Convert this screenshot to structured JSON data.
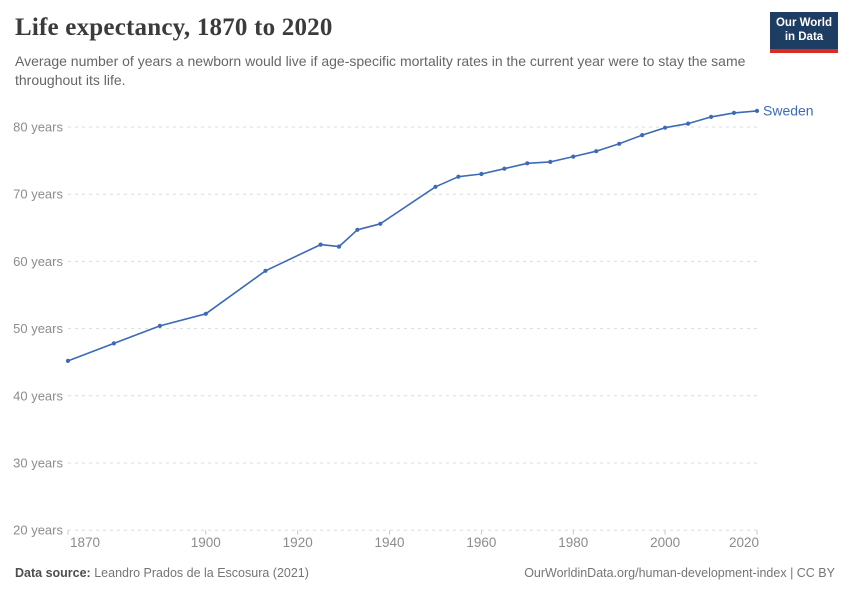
{
  "header": {
    "title": "Life expectancy, 1870 to 2020",
    "subtitle": "Average number of years a newborn would live if age-specific mortality rates in the current year were to stay the same throughout its life.",
    "logo": {
      "line1": "Our World",
      "line2": "in Data",
      "bg_color": "#1d3d63",
      "accent_color": "#dc2a24"
    }
  },
  "footer": {
    "source_label": "Data source:",
    "source_value": " Leandro Prados de la Escosura (2021)",
    "credit": "OurWorldinData.org/human-development-index | CC BY"
  },
  "chart_data": {
    "type": "line",
    "title": "Life expectancy, 1870 to 2020",
    "xlabel": "",
    "ylabel": "",
    "xlim": [
      1870,
      2020
    ],
    "ylim": [
      20,
      84
    ],
    "grid": "horizontal dashed",
    "legend_position": "end-of-line label",
    "x_ticks": [
      1870,
      1900,
      1920,
      1940,
      1960,
      1980,
      2000,
      2020
    ],
    "y_ticks": [
      20,
      30,
      40,
      50,
      60,
      70,
      80
    ],
    "y_tick_suffix": " years",
    "axis_text_color": "#8c8c8c",
    "gridline_color": "#dcdcdc",
    "series": [
      {
        "name": "Sweden",
        "color": "#3d6ab5",
        "x": [
          1870,
          1880,
          1890,
          1900,
          1913,
          1925,
          1929,
          1933,
          1938,
          1950,
          1955,
          1960,
          1965,
          1970,
          1975,
          1980,
          1985,
          1990,
          1995,
          2000,
          2005,
          2010,
          2015,
          2020
        ],
        "y": [
          45.2,
          47.8,
          50.4,
          52.2,
          58.6,
          62.5,
          62.2,
          64.7,
          65.6,
          71.1,
          72.6,
          73.0,
          73.8,
          74.6,
          74.8,
          75.6,
          76.4,
          77.5,
          78.8,
          79.9,
          80.5,
          81.5,
          82.1,
          82.4
        ]
      }
    ]
  }
}
